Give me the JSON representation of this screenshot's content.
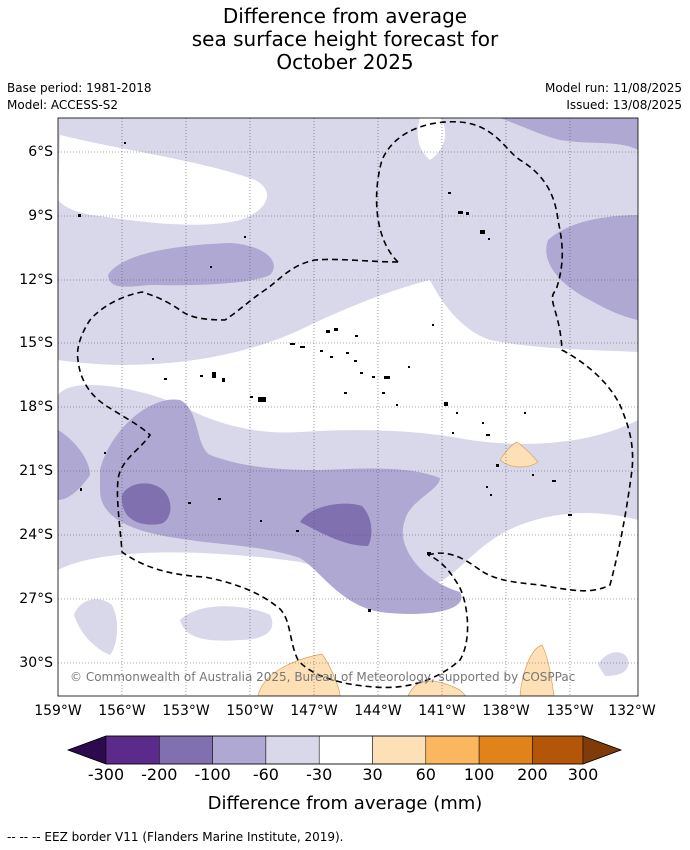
{
  "title_lines": [
    "Difference from average",
    "sea surface height forecast for",
    "October 2025"
  ],
  "meta": {
    "base_period": "Base period: 1981-2018",
    "model": "Model: ACCESS-S2",
    "model_run": "Model run: 11/08/2025",
    "issued": "Issued: 13/08/2025"
  },
  "map": {
    "lat_ticks": [
      "6°S",
      "9°S",
      "12°S",
      "15°S",
      "18°S",
      "21°S",
      "24°S",
      "27°S",
      "30°S"
    ],
    "lon_ticks": [
      "159°W",
      "156°W",
      "153°W",
      "150°W",
      "147°W",
      "144°W",
      "141°W",
      "138°W",
      "135°W",
      "132°W"
    ],
    "copyright": "© Commonwealth of Australia 2025, Bureau of Meteorology, supported by COSPPac"
  },
  "colorbar": {
    "labels": [
      "-300",
      "-200",
      "-100",
      "-60",
      "-30",
      "30",
      "60",
      "100",
      "200",
      "300"
    ],
    "colors": [
      "#2d0a4e",
      "#5c2a8a",
      "#8070b0",
      "#aea8d2",
      "#d8d8ea",
      "#ffffff",
      "#fde0b6",
      "#fbb75e",
      "#e0831a",
      "#b35607",
      "#7f3b08"
    ],
    "title": "Difference from average (mm)"
  },
  "legend": {
    "eez": "--  --  -- EEZ border V11 (Flanders Marine Institute, 2019)."
  }
}
